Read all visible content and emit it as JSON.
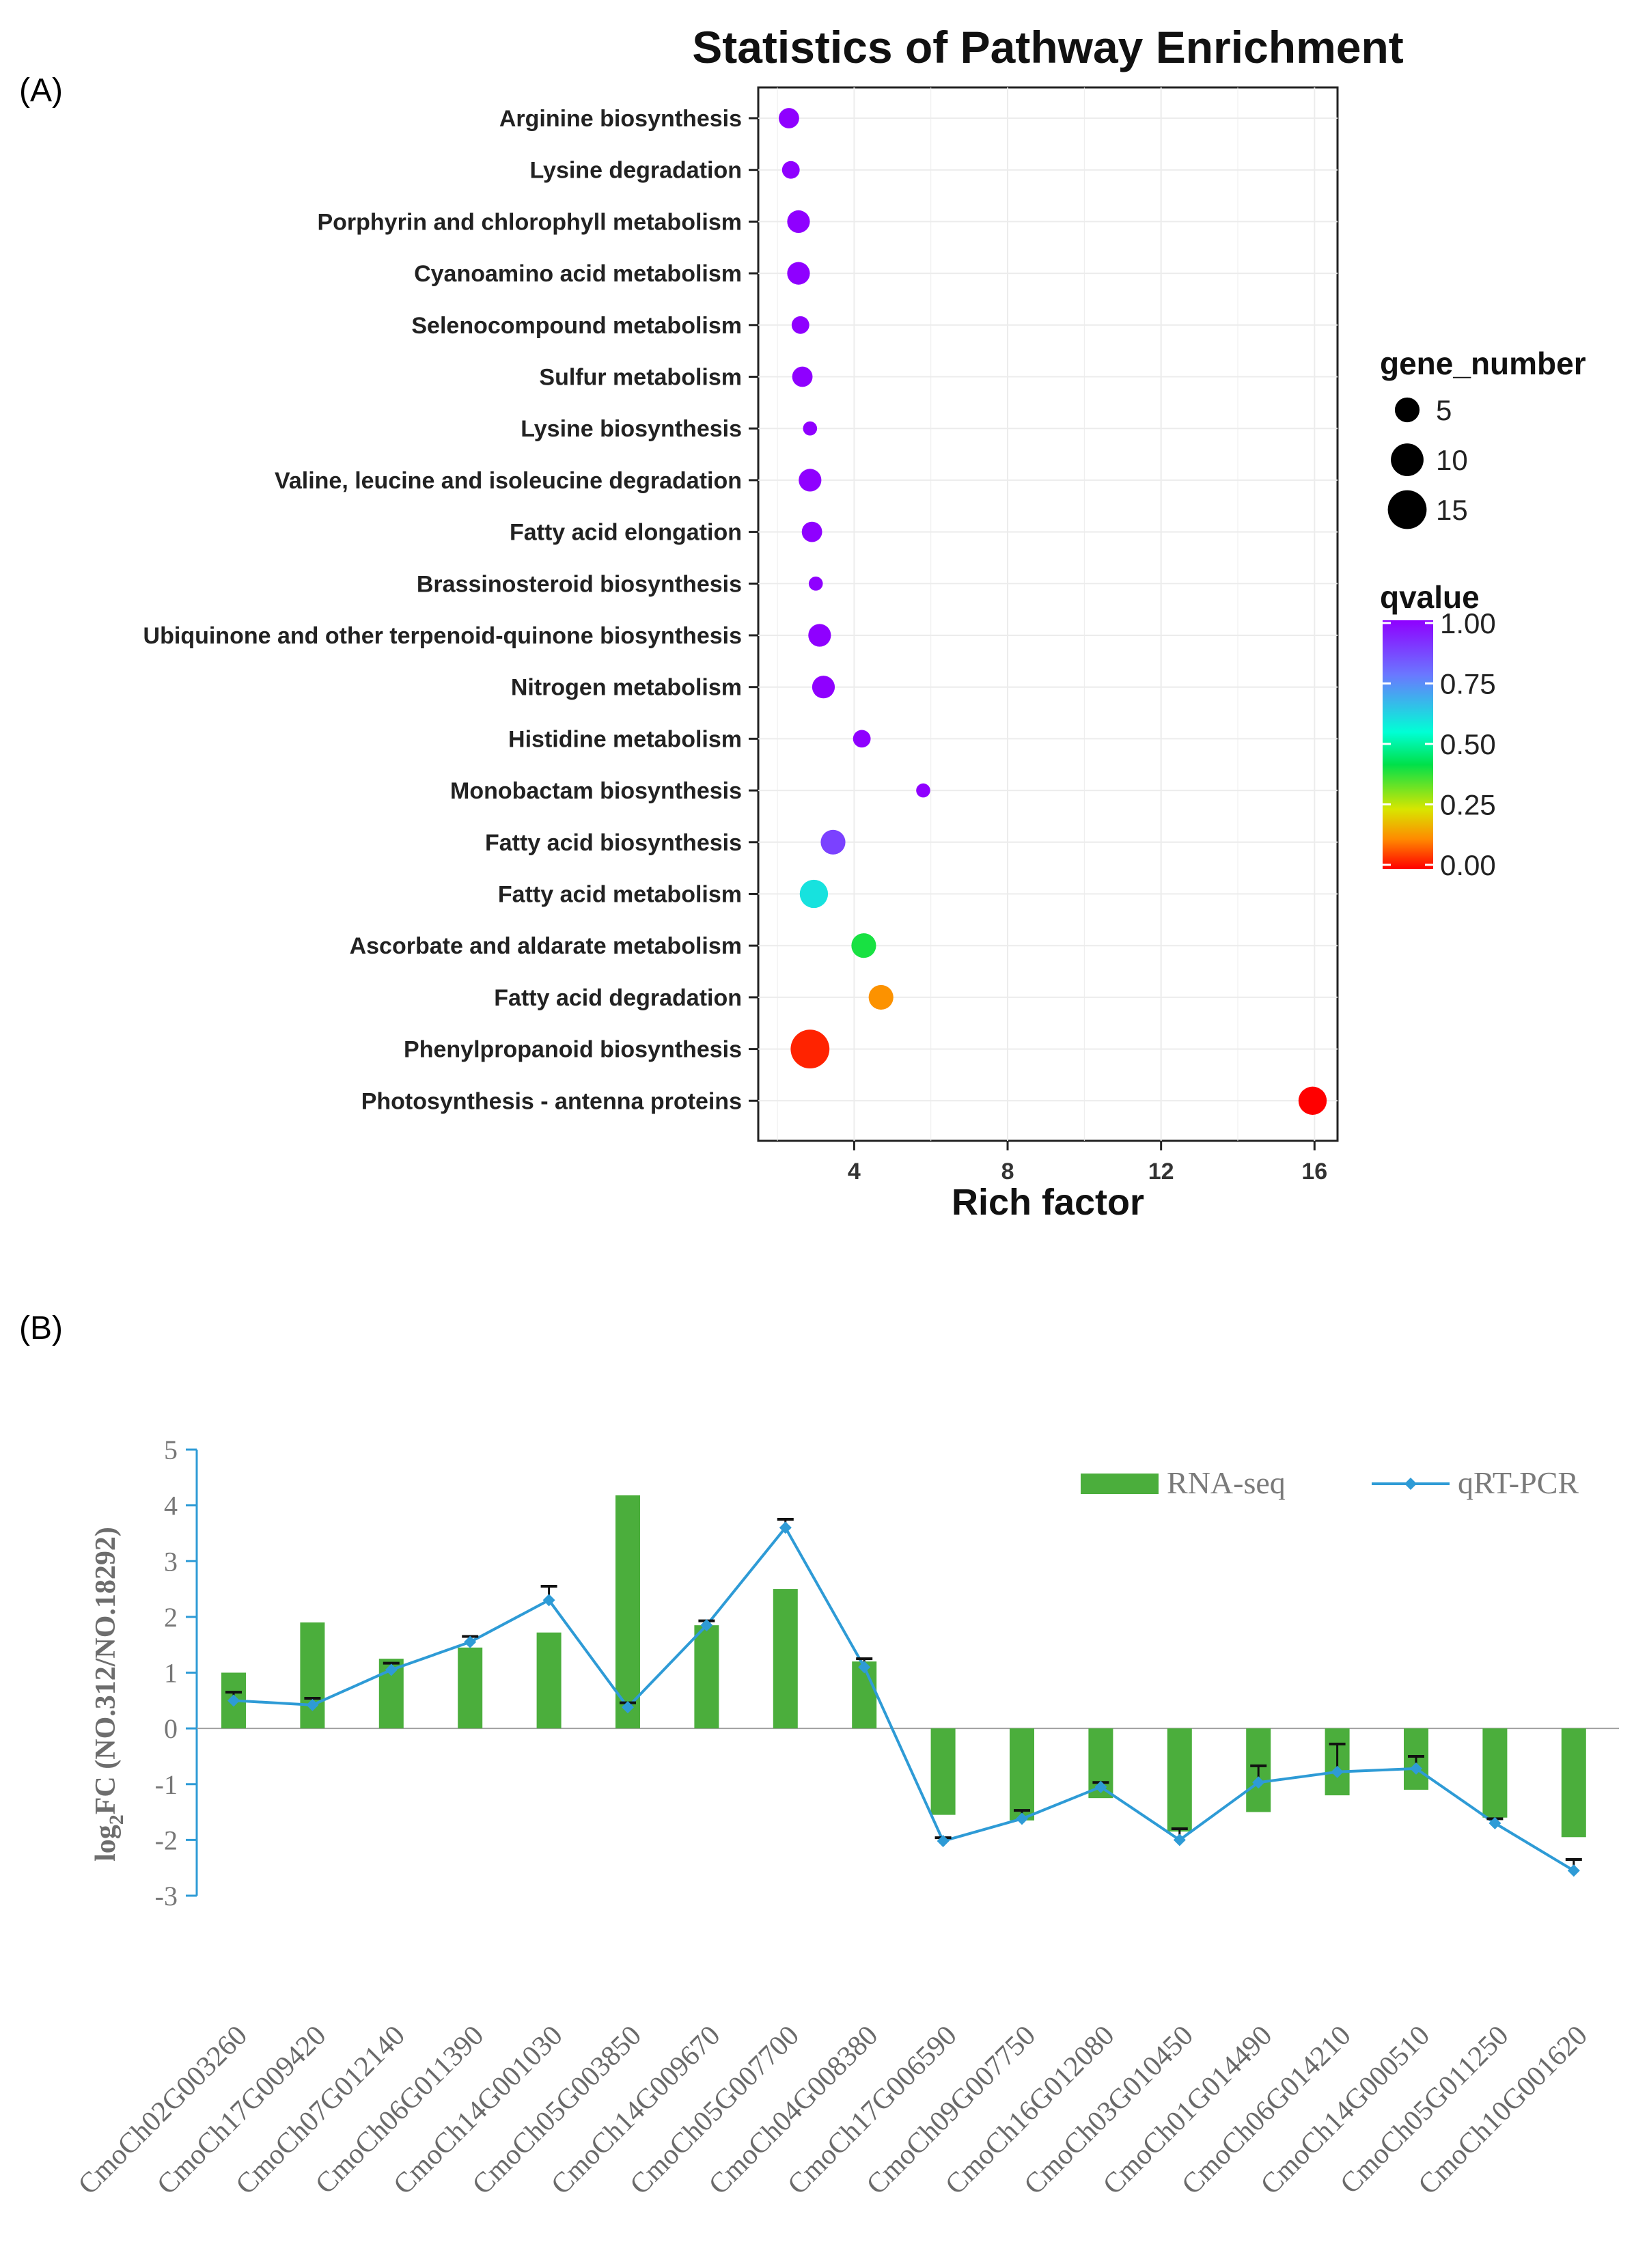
{
  "panel_a": {
    "label": "(A)",
    "chart_data": {
      "type": "scatter",
      "title": "Statistics of Pathway Enrichment",
      "xlabel": "Rich factor",
      "ylabel": "",
      "xlim": [
        1.5,
        16.6
      ],
      "xticks": [
        4,
        8,
        12,
        16
      ],
      "grid": true,
      "legend_size_title": "gene_number",
      "legend_size": [
        {
          "label": "5",
          "value": 5
        },
        {
          "label": "10",
          "value": 10
        },
        {
          "label": "15",
          "value": 15
        }
      ],
      "legend_color_title": "qvalue",
      "legend_color_ticks": [
        "1.00",
        "0.75",
        "0.50",
        "0.25",
        "0.00"
      ],
      "legend_color_tick_values": [
        1.0,
        0.75,
        0.5,
        0.25,
        0.0
      ],
      "legend_placement": "right",
      "points": [
        {
          "pathway": "Arginine biosynthesis",
          "rich_factor": 2.3,
          "gene_number": 3,
          "qvalue": 1.0
        },
        {
          "pathway": "Lysine degradation",
          "rich_factor": 2.35,
          "gene_number": 2,
          "qvalue": 1.0
        },
        {
          "pathway": "Porphyrin and chlorophyll metabolism",
          "rich_factor": 2.55,
          "gene_number": 4,
          "qvalue": 1.0
        },
        {
          "pathway": "Cyanoamino acid metabolism",
          "rich_factor": 2.55,
          "gene_number": 4,
          "qvalue": 1.0
        },
        {
          "pathway": "Selenocompound metabolism",
          "rich_factor": 2.6,
          "gene_number": 2,
          "qvalue": 1.0
        },
        {
          "pathway": "Sulfur metabolism",
          "rich_factor": 2.65,
          "gene_number": 3,
          "qvalue": 1.0
        },
        {
          "pathway": "Lysine biosynthesis",
          "rich_factor": 2.85,
          "gene_number": 1,
          "qvalue": 1.0
        },
        {
          "pathway": "Valine, leucine and isoleucine degradation",
          "rich_factor": 2.85,
          "gene_number": 4,
          "qvalue": 1.0
        },
        {
          "pathway": "Fatty acid elongation",
          "rich_factor": 2.9,
          "gene_number": 3,
          "qvalue": 1.0
        },
        {
          "pathway": "Brassinosteroid biosynthesis",
          "rich_factor": 3.0,
          "gene_number": 1,
          "qvalue": 1.0
        },
        {
          "pathway": "Ubiquinone and other terpenoid-quinone biosynthesis",
          "rich_factor": 3.1,
          "gene_number": 4,
          "qvalue": 1.0
        },
        {
          "pathway": "Nitrogen metabolism",
          "rich_factor": 3.2,
          "gene_number": 4,
          "qvalue": 1.0
        },
        {
          "pathway": "Histidine metabolism",
          "rich_factor": 4.2,
          "gene_number": 2,
          "qvalue": 1.0
        },
        {
          "pathway": "Monobactam biosynthesis",
          "rich_factor": 5.8,
          "gene_number": 1,
          "qvalue": 1.0
        },
        {
          "pathway": "Fatty acid biosynthesis",
          "rich_factor": 3.45,
          "gene_number": 5,
          "qvalue": 0.88
        },
        {
          "pathway": "Fatty acid metabolism",
          "rich_factor": 2.95,
          "gene_number": 7,
          "qvalue": 0.6
        },
        {
          "pathway": "Ascorbate and aldarate metabolism",
          "rich_factor": 4.25,
          "gene_number": 5,
          "qvalue": 0.4
        },
        {
          "pathway": "Fatty acid degradation",
          "rich_factor": 4.7,
          "gene_number": 5,
          "qvalue": 0.13
        },
        {
          "pathway": "Phenylpropanoid biosynthesis",
          "rich_factor": 2.85,
          "gene_number": 15,
          "qvalue": 0.03
        },
        {
          "pathway": "Photosynthesis - antenna proteins",
          "rich_factor": 15.95,
          "gene_number": 7,
          "qvalue": 0.0
        }
      ]
    }
  },
  "panel_b": {
    "label": "(B)",
    "chart_data": {
      "type": "bar",
      "title": "",
      "xlabel": "",
      "ylabel_main": "log",
      "ylabel_sub": "2",
      "ylabel_rest": "FC (NO.312/NO.18292)",
      "ylim": [
        -3,
        5
      ],
      "yticks": [
        "5",
        "4",
        "3",
        "2",
        "1",
        "0",
        "-1",
        "-2",
        "-3"
      ],
      "ytick_values": [
        5,
        4,
        3,
        2,
        1,
        0,
        -1,
        -2,
        -3
      ],
      "grid": false,
      "legend_placement": "top-right",
      "categories": [
        "CmoCh02G003260",
        "CmoCh17G009420",
        "CmoCh07G012140",
        "CmoCh06G011390",
        "CmoCh14G001030",
        "CmoCh05G003850",
        "CmoCh14G009670",
        "CmoCh05G007700",
        "CmoCh04G008380",
        "CmoCh17G006590",
        "CmoCh09G007750",
        "CmoCh16G012080",
        "CmoCh03G010450",
        "CmoCh01G014490",
        "CmoCh06G014210",
        "CmoCh14G000510",
        "CmoCh05G011250",
        "CmoCh10G001620"
      ],
      "series": [
        {
          "name": "RNA-seq",
          "kind": "bar",
          "color": "#4bae3c",
          "values": [
            1.0,
            1.9,
            1.25,
            1.45,
            1.72,
            4.18,
            1.85,
            2.5,
            1.2,
            -1.55,
            -1.65,
            -1.25,
            -1.85,
            -1.5,
            -1.2,
            -1.1,
            -1.6,
            -1.95
          ]
        },
        {
          "name": "qRT-PCR",
          "kind": "line",
          "color": "#2e9bd6",
          "values": [
            0.5,
            0.42,
            1.05,
            1.55,
            2.3,
            0.38,
            1.85,
            3.6,
            1.1,
            -2.02,
            -1.62,
            -1.05,
            -2.0,
            -0.97,
            -0.78,
            -0.72,
            -1.7,
            -2.55
          ],
          "errors": [
            0.15,
            0.12,
            0.12,
            0.1,
            0.25,
            0.08,
            0.08,
            0.15,
            0.15,
            0.06,
            0.15,
            0.08,
            0.2,
            0.3,
            0.5,
            0.22,
            0.08,
            0.2
          ]
        }
      ]
    }
  }
}
